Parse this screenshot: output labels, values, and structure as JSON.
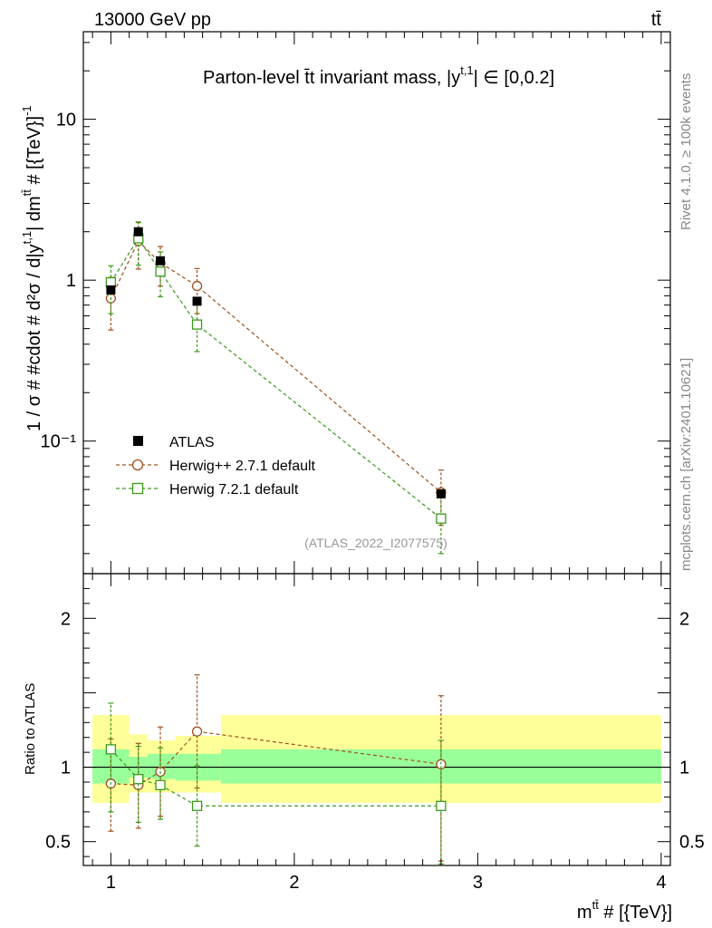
{
  "header": {
    "energy_label": "13000 GeV pp",
    "process_label": "tt̄"
  },
  "side_labels": {
    "rivet": "Rivet 4.1.0, ≥ 100k events",
    "mcplots": "mcplots.cern.ch [arXiv:2401.10621]"
  },
  "chart_data": {
    "type": "scatter",
    "title": "Parton-level t̄t invariant mass, |y^{t,1}| ∈ [0,0.2]",
    "title_main": "Parton-level t̄t invariant mass, |y",
    "title_sup": "t,1",
    "title_tail": "| ∈ [0,0.2]",
    "watermark": "(ATLAS_2022_I2077575)",
    "xlabel": "m^{tt̄} # [{TeV}]",
    "xlabel_main": "m",
    "xlabel_sup": "tt̄",
    "xlabel_tail": " # [{TeV}]",
    "ylabel": "1 / σ # #cdot # d²σ / d|y^{t,1}| dm^{tt̄} # [{TeV}]^{-1}",
    "ylabel_main": "1 / σ # #cdot # d²σ / d|y",
    "ylabel_sup1": "t,1",
    "ylabel_mid": "| dm",
    "ylabel_sup2": "tt̄",
    "ylabel_tail": " # [{TeV}]",
    "ylabel_sup3": "-1",
    "ratio_ylabel": "Ratio to ATLAS",
    "xlim": [
      0.85,
      4.05
    ],
    "ylim_main": [
      0.015,
      35
    ],
    "ylim_ratio": [
      0.34,
      2.3
    ],
    "main_yticks": [
      {
        "value": 10,
        "label": "10"
      },
      {
        "value": 1,
        "label": "1"
      },
      {
        "value": 0.1,
        "label": "10⁻¹"
      }
    ],
    "ratio_yticks": [
      {
        "value": 2,
        "label": "2"
      },
      {
        "value": 1,
        "label": "1"
      },
      {
        "value": 0.5,
        "label": "0.5"
      }
    ],
    "xticks": [
      {
        "value": 1,
        "label": "1"
      },
      {
        "value": 2,
        "label": "2"
      },
      {
        "value": 3,
        "label": "3"
      },
      {
        "value": 4,
        "label": "4"
      }
    ],
    "bins": [
      {
        "lo": 0.9,
        "hi": 1.1
      },
      {
        "lo": 1.1,
        "hi": 1.2
      },
      {
        "lo": 1.2,
        "hi": 1.35
      },
      {
        "lo": 1.35,
        "hi": 1.6
      },
      {
        "lo": 1.6,
        "hi": 4.0
      }
    ],
    "band_inner": [
      [
        0.89,
        1.12
      ],
      [
        0.93,
        1.07
      ],
      [
        0.92,
        1.09
      ],
      [
        0.91,
        1.09
      ],
      [
        0.89,
        1.12
      ]
    ],
    "band_outer": [
      [
        0.76,
        1.35
      ],
      [
        0.83,
        1.22
      ],
      [
        0.83,
        1.18
      ],
      [
        0.83,
        1.21
      ],
      [
        0.76,
        1.35
      ]
    ],
    "series": [
      {
        "name": "ATLAS",
        "marker": "filled-square",
        "color": "#000000",
        "x": [
          1.0,
          1.15,
          1.27,
          1.47,
          2.8
        ],
        "y": [
          0.87,
          2.0,
          1.32,
          0.74,
          0.047
        ]
      },
      {
        "name": "Herwig++ 2.7.1 default",
        "marker": "open-circle",
        "color": "#a0501e",
        "x": [
          1.0,
          1.15,
          1.27,
          1.47,
          2.8
        ],
        "y": [
          0.77,
          1.75,
          1.28,
          0.92,
          0.048
        ],
        "yerr_lo": [
          0.49,
          1.17,
          0.92,
          0.62,
          0.03
        ],
        "yerr_hi": [
          1.04,
          2.3,
          1.62,
          1.18,
          0.066
        ],
        "ratio": [
          0.89,
          0.88,
          0.97,
          1.24,
          1.02
        ],
        "ratio_lo": [
          0.57,
          0.59,
          0.67,
          0.86,
          0.37
        ],
        "ratio_hi": [
          1.19,
          1.16,
          1.27,
          1.62,
          1.48
        ]
      },
      {
        "name": "Herwig 7.2.1 default",
        "marker": "open-square",
        "color": "#3a9a1a",
        "x": [
          1.0,
          1.15,
          1.27,
          1.47,
          2.8
        ],
        "y": [
          0.97,
          1.82,
          1.13,
          0.53,
          0.033
        ],
        "yerr_lo": [
          0.62,
          1.24,
          0.79,
          0.36,
          0.02
        ],
        "yerr_hi": [
          1.23,
          2.28,
          1.5,
          0.72,
          0.047
        ],
        "ratio": [
          1.12,
          0.92,
          0.88,
          0.74,
          0.74
        ],
        "ratio_lo": [
          0.7,
          0.63,
          0.65,
          0.47,
          0.35
        ],
        "ratio_hi": [
          1.43,
          1.14,
          1.13,
          1.01,
          1.18
        ]
      }
    ],
    "legend_position": "middle-left"
  },
  "colors": {
    "band_inner": "#99ff99",
    "band_outer": "#ffff99",
    "gray_text": "#888888"
  }
}
